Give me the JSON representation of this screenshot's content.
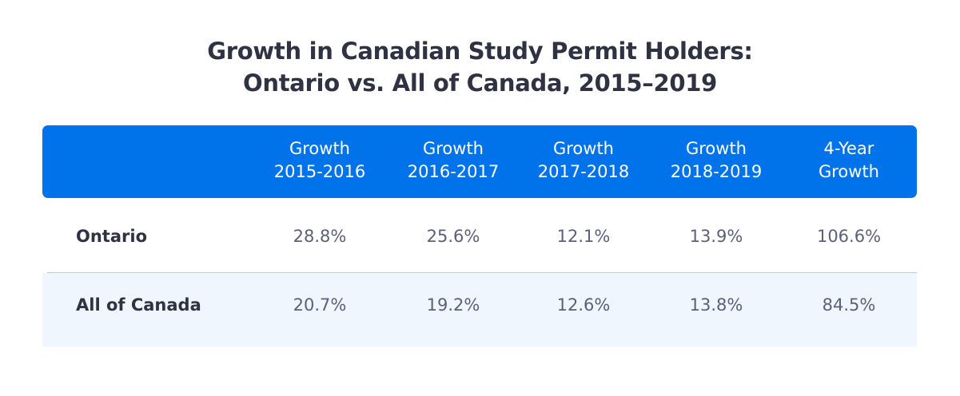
{
  "chart_data": {
    "type": "table",
    "title": "Growth in Canadian Study Permit Holders:\nOntario vs. All of Canada, 2015–2019",
    "title_lines": [
      "Growth in Canadian Study Permit Holders:",
      "Ontario vs. All of Canada, 2015–2019"
    ],
    "columns": [
      {
        "line1": "Growth",
        "line2": "2015-2016"
      },
      {
        "line1": "Growth",
        "line2": "2016-2017"
      },
      {
        "line1": "Growth",
        "line2": "2017-2018"
      },
      {
        "line1": "Growth",
        "line2": "2018-2019"
      },
      {
        "line1": "4-Year",
        "line2": "Growth"
      }
    ],
    "rows": [
      {
        "label": "Ontario",
        "values": [
          "28.8%",
          "25.6%",
          "12.1%",
          "13.9%",
          "106.6%"
        ]
      },
      {
        "label": "All of Canada",
        "values": [
          "20.7%",
          "19.2%",
          "12.6%",
          "13.8%",
          "84.5%"
        ]
      }
    ],
    "colors": {
      "header": "#0073ea",
      "alt_row": "#eff6fe",
      "title_text": "#2f3243",
      "value_text": "#5c6078"
    }
  }
}
